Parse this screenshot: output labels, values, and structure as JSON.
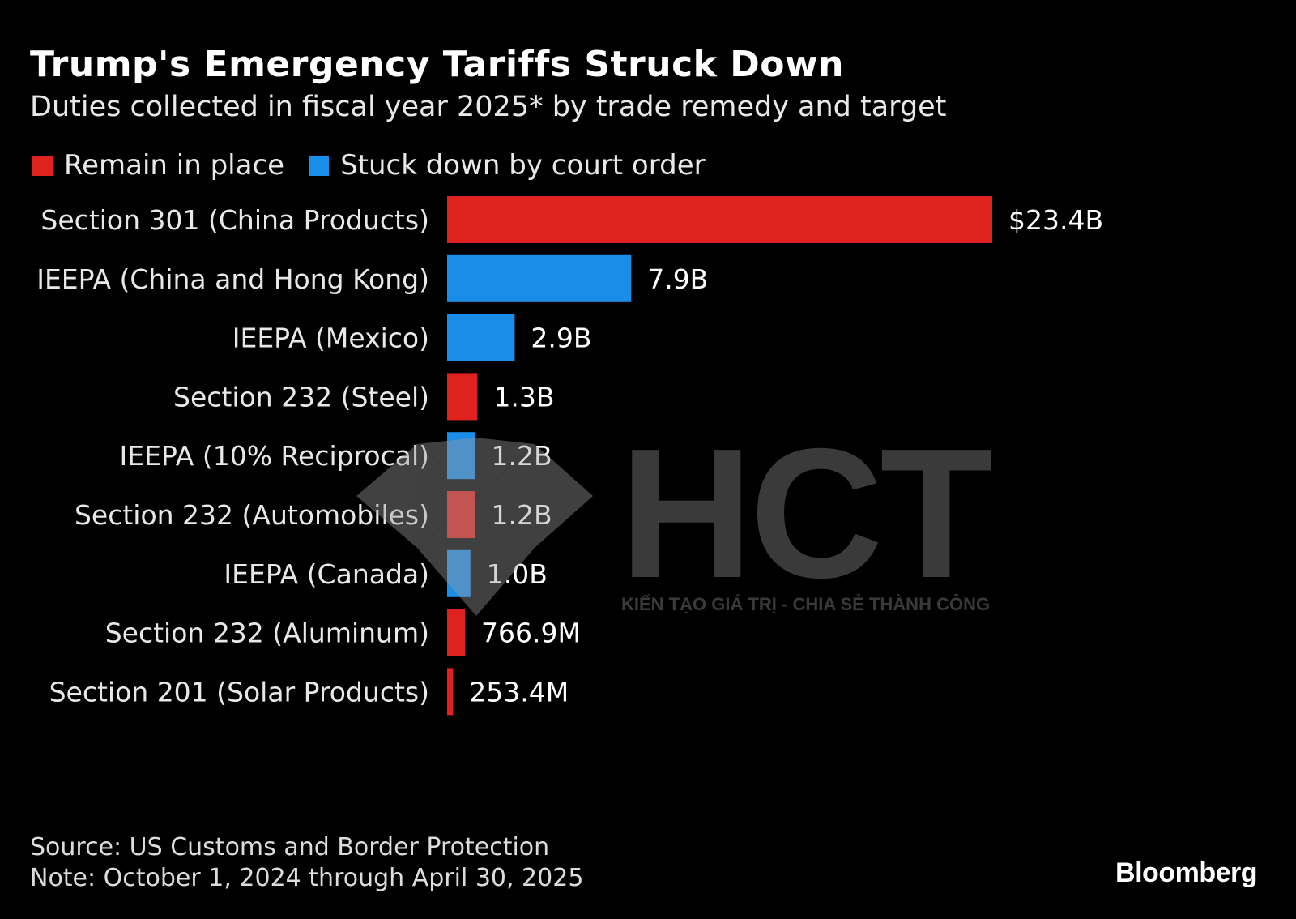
{
  "title": "Trump's Emergency Tariffs Struck Down",
  "subtitle": "Duties collected in fiscal year 2025* by trade remedy and target",
  "legend": [
    {
      "label": "Remain in place",
      "color": "#e0221f"
    },
    {
      "label": "Stuck down by court order",
      "color": "#1a8de8"
    }
  ],
  "chart_data": {
    "type": "bar",
    "orientation": "horizontal",
    "categories": [
      "Section 301 (China Products)",
      "IEEPA (China and Hong Kong)",
      "IEEPA (Mexico)",
      "Section 232 (Steel)",
      "IEEPA (10% Reciprocal)",
      "Section 232 (Automobiles)",
      "IEEPA (Canada)",
      "Section 232 (Aluminum)",
      "Section 201 (Solar Products)"
    ],
    "values": [
      23.4,
      7.9,
      2.9,
      1.3,
      1.2,
      1.2,
      1.0,
      0.7669,
      0.2534
    ],
    "unit": "billion USD",
    "value_labels": [
      "$23.4B",
      "7.9B",
      "2.9B",
      "1.3B",
      "1.2B",
      "1.2B",
      "1.0B",
      "766.9M",
      "253.4M"
    ],
    "status": [
      "Remain in place",
      "Stuck down by court order",
      "Stuck down by court order",
      "Remain in place",
      "Stuck down by court order",
      "Remain in place",
      "Stuck down by court order",
      "Remain in place",
      "Remain in place"
    ],
    "colors": {
      "Remain in place": "#e0221f",
      "Stuck down by court order": "#1a8de8"
    },
    "xlim": [
      0,
      23.4
    ],
    "grid": false,
    "legend_position": "top-left"
  },
  "watermark": {
    "text": "HCT",
    "tagline": "KIẾN TẠO GIÁ TRỊ - CHIA SẺ THÀNH CÔNG"
  },
  "footer": {
    "source": "Source: US Customs and Border Protection",
    "note": "Note: October 1, 2024 through April 30, 2025",
    "brand": "Bloomberg"
  }
}
